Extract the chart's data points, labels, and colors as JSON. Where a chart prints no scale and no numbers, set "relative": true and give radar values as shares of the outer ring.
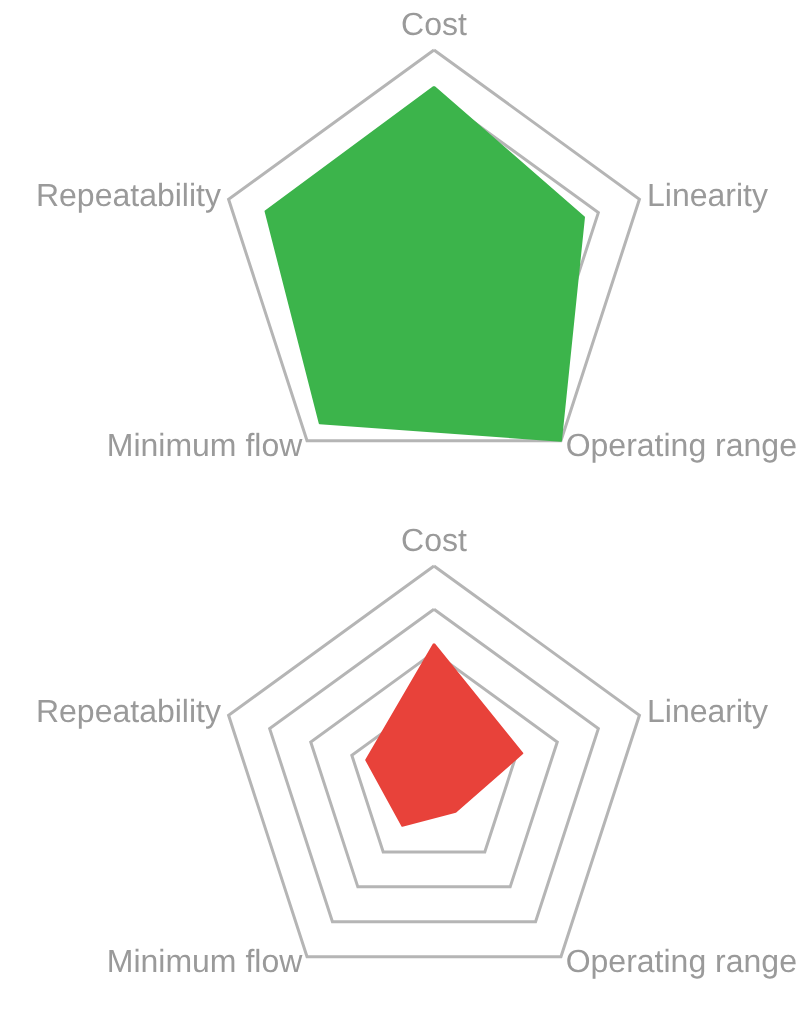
{
  "chart_data": [
    {
      "type": "radar",
      "relative": true,
      "categories": [
        "Cost",
        "Linearity",
        "Operating range",
        "Minimum flow",
        "Repeatability"
      ],
      "series": [
        {
          "color": "#3cb44b",
          "values": [
            0.83,
            0.73,
            1.0,
            0.9,
            0.82
          ]
        }
      ]
    },
    {
      "type": "radar",
      "relative": true,
      "categories": [
        "Cost",
        "Linearity",
        "Operating range",
        "Minimum flow",
        "Repeatability"
      ],
      "series": [
        {
          "color": "#e8423a",
          "values": [
            0.64,
            0.43,
            0.17,
            0.25,
            0.33
          ]
        }
      ]
    }
  ]
}
